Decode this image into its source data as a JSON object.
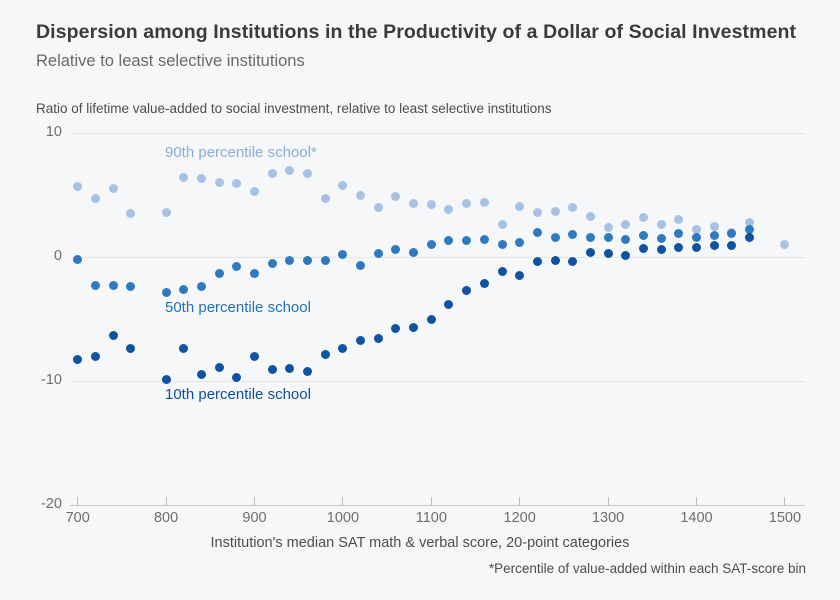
{
  "chart_data": {
    "type": "scatter",
    "title": "Dispersion among Institutions in the Productivity of a Dollar of Social Investment",
    "subtitle": "Relative to least selective institutions",
    "y_axis_title": "Ratio of lifetime value-added to social investment, relative to least selective institutions",
    "x_axis_label": "Institution's median SAT math & verbal score, 20-point categories",
    "footnote": "*Percentile of value-added within each SAT-score bin",
    "xlim": [
      700,
      1500
    ],
    "ylim": [
      -20,
      10
    ],
    "x_ticks": [
      700,
      800,
      900,
      1000,
      1100,
      1200,
      1300,
      1400,
      1500
    ],
    "y_ticks": [
      10,
      0,
      -10,
      -20
    ],
    "grid": "horizontal-only",
    "legend": "inline-series-labels",
    "missing_sat_bins": [
      780,
      1480
    ],
    "colors": {
      "background": "#f6f7f9",
      "gridline": "#e4e5e9",
      "axis_line": "#c7c8cc",
      "tick_text": "#6d6d6d",
      "title_text": "#3b3b3b",
      "subtitle_text": "#696969"
    },
    "series": [
      {
        "name": "90th percentile school*",
        "color": "#a6c1e3",
        "label_color": "#89add9",
        "points": [
          [
            700,
            5.7
          ],
          [
            720,
            4.7
          ],
          [
            740,
            5.5
          ],
          [
            760,
            3.5
          ],
          [
            800,
            3.6
          ],
          [
            820,
            6.4
          ],
          [
            840,
            6.3
          ],
          [
            860,
            6.0
          ],
          [
            880,
            5.9
          ],
          [
            900,
            5.3
          ],
          [
            920,
            6.7
          ],
          [
            940,
            7.0
          ],
          [
            960,
            6.7
          ],
          [
            980,
            4.7
          ],
          [
            1000,
            5.8
          ],
          [
            1020,
            5.0
          ],
          [
            1040,
            4.0
          ],
          [
            1060,
            4.9
          ],
          [
            1080,
            4.3
          ],
          [
            1100,
            4.2
          ],
          [
            1120,
            3.8
          ],
          [
            1140,
            4.3
          ],
          [
            1160,
            4.4
          ],
          [
            1180,
            2.6
          ],
          [
            1200,
            4.1
          ],
          [
            1220,
            3.6
          ],
          [
            1240,
            3.7
          ],
          [
            1260,
            4.0
          ],
          [
            1280,
            3.3
          ],
          [
            1300,
            2.4
          ],
          [
            1320,
            2.6
          ],
          [
            1340,
            3.2
          ],
          [
            1360,
            2.6
          ],
          [
            1380,
            3.0
          ],
          [
            1400,
            2.2
          ],
          [
            1420,
            2.5
          ],
          [
            1440,
            2.0
          ],
          [
            1460,
            2.8
          ],
          [
            1500,
            1.0
          ]
        ]
      },
      {
        "name": "50th percentile school",
        "color": "#2e79bf",
        "label_color": "#2272b8",
        "points": [
          [
            700,
            -0.2
          ],
          [
            720,
            -2.3
          ],
          [
            740,
            -2.3
          ],
          [
            760,
            -2.4
          ],
          [
            800,
            -2.9
          ],
          [
            820,
            -2.6
          ],
          [
            840,
            -2.4
          ],
          [
            860,
            -1.3
          ],
          [
            880,
            -0.8
          ],
          [
            900,
            -1.3
          ],
          [
            920,
            -0.5
          ],
          [
            940,
            -0.3
          ],
          [
            960,
            -0.3
          ],
          [
            980,
            -0.3
          ],
          [
            1000,
            0.2
          ],
          [
            1020,
            -0.7
          ],
          [
            1040,
            0.3
          ],
          [
            1060,
            0.6
          ],
          [
            1080,
            0.4
          ],
          [
            1100,
            1.0
          ],
          [
            1120,
            1.3
          ],
          [
            1140,
            1.3
          ],
          [
            1160,
            1.4
          ],
          [
            1180,
            1.0
          ],
          [
            1200,
            1.2
          ],
          [
            1220,
            2.0
          ],
          [
            1240,
            1.6
          ],
          [
            1260,
            1.8
          ],
          [
            1280,
            1.6
          ],
          [
            1300,
            1.6
          ],
          [
            1320,
            1.4
          ],
          [
            1340,
            1.7
          ],
          [
            1360,
            1.5
          ],
          [
            1380,
            1.9
          ],
          [
            1400,
            1.6
          ],
          [
            1420,
            1.7
          ],
          [
            1440,
            1.9
          ],
          [
            1460,
            2.2
          ]
        ]
      },
      {
        "name": "10th percentile school",
        "color": "#0e52a0",
        "label_color": "#0d4f9c",
        "points": [
          [
            700,
            -8.3
          ],
          [
            720,
            -8.0
          ],
          [
            740,
            -6.3
          ],
          [
            760,
            -7.4
          ],
          [
            800,
            -9.9
          ],
          [
            820,
            -7.4
          ],
          [
            840,
            -9.5
          ],
          [
            860,
            -8.9
          ],
          [
            880,
            -9.7
          ],
          [
            900,
            -8.0
          ],
          [
            920,
            -9.1
          ],
          [
            940,
            -9.0
          ],
          [
            960,
            -9.2
          ],
          [
            980,
            -7.9
          ],
          [
            1000,
            -7.4
          ],
          [
            1020,
            -6.7
          ],
          [
            1040,
            -6.6
          ],
          [
            1060,
            -5.8
          ],
          [
            1080,
            -5.7
          ],
          [
            1100,
            -5.0
          ],
          [
            1120,
            -3.8
          ],
          [
            1140,
            -2.7
          ],
          [
            1160,
            -2.1
          ],
          [
            1180,
            -1.2
          ],
          [
            1200,
            -1.5
          ],
          [
            1220,
            -0.4
          ],
          [
            1240,
            -0.3
          ],
          [
            1260,
            -0.4
          ],
          [
            1280,
            0.4
          ],
          [
            1300,
            0.3
          ],
          [
            1320,
            0.1
          ],
          [
            1340,
            0.7
          ],
          [
            1360,
            0.6
          ],
          [
            1380,
            0.8
          ],
          [
            1400,
            0.8
          ],
          [
            1420,
            0.9
          ],
          [
            1440,
            0.9
          ],
          [
            1460,
            1.6
          ]
        ]
      }
    ]
  }
}
